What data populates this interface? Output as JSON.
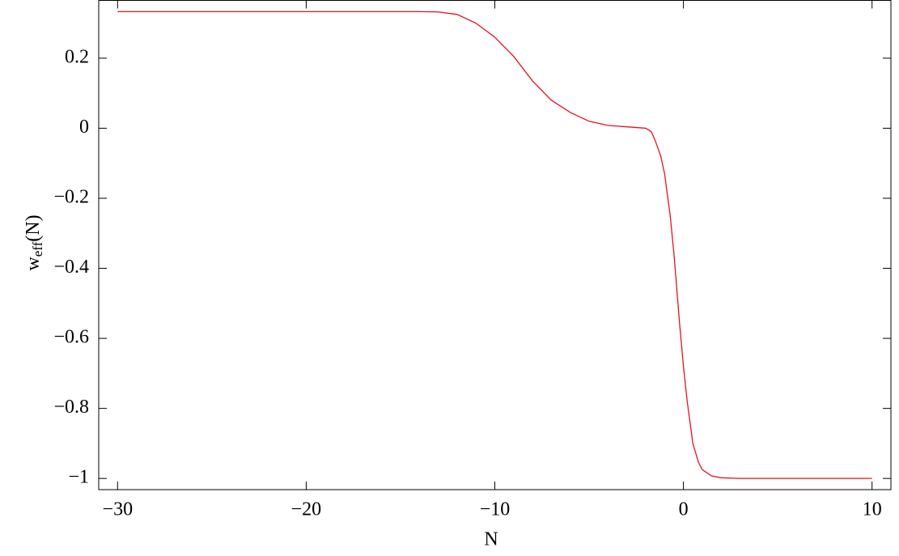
{
  "chart_data": {
    "type": "line",
    "xlabel": "N",
    "ylabel": {
      "base": "w",
      "sub": "eff",
      "tail": "(N)"
    },
    "xlim": [
      -31,
      11
    ],
    "ylim": [
      -1.032,
      0.365
    ],
    "xticks": [
      {
        "value": -30,
        "label": "−30"
      },
      {
        "value": -20,
        "label": "−20"
      },
      {
        "value": -10,
        "label": "−10"
      },
      0,
      10
    ],
    "yticks": [
      0.2,
      0,
      {
        "value": -0.2,
        "label": "−0.2"
      },
      {
        "value": -0.4,
        "label": "−0.4"
      },
      {
        "value": -0.6,
        "label": "−0.6"
      },
      {
        "value": -0.8,
        "label": "−0.8"
      },
      {
        "value": -1,
        "label": "−1"
      }
    ],
    "series": [
      {
        "color": "#e8101a",
        "x": [
          -30,
          -20,
          -14,
          -13,
          -12,
          -11,
          -10,
          -9,
          -8,
          -7,
          -6,
          -5,
          -4,
          -3,
          -2,
          -1.7,
          -1.5,
          -1.2,
          -1,
          -0.7,
          -0.5,
          -0.2,
          0,
          0.2,
          0.5,
          0.8,
          1,
          1.5,
          2,
          3,
          5,
          10
        ],
        "values": [
          0.333,
          0.333,
          0.333,
          0.332,
          0.325,
          0.3,
          0.26,
          0.205,
          0.135,
          0.08,
          0.045,
          0.02,
          0.008,
          0.004,
          0.0,
          -0.01,
          -0.035,
          -0.08,
          -0.13,
          -0.25,
          -0.36,
          -0.56,
          -0.68,
          -0.78,
          -0.9,
          -0.955,
          -0.975,
          -0.993,
          -0.998,
          -1,
          -1,
          -1
        ]
      }
    ]
  }
}
